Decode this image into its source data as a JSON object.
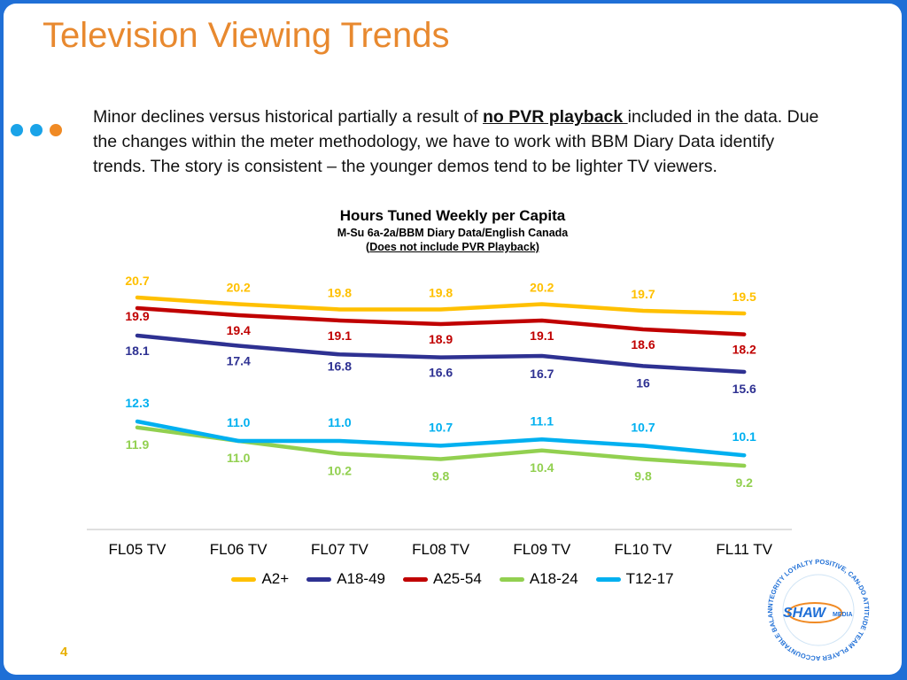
{
  "title": "Television Viewing Trends",
  "body": {
    "pre": "Minor declines versus historical partially a result of ",
    "emphasis": "no PVR playback ",
    "post": " included in the data. Due the changes within the meter methodology, we have to work with BBM Diary Data identify trends. The story is consistent – the younger demos tend to be lighter TV viewers."
  },
  "dots_colors": [
    "#1aa3e8",
    "#1aa3e8",
    "#f08a24"
  ],
  "chart_title": {
    "main": "Hours Tuned Weekly per Capita",
    "sub": "M-Su 6a-2a/BBM Diary Data/English Canada",
    "note_open": "(",
    "note": "Does not include PVR Playback)"
  },
  "page_number": "4",
  "logo": {
    "text": "SHAW",
    "media": "MEDIA",
    "ring": "INTEGRITY  LOYALTY  POSITIVE, CAN-DO ATTITUDE  TEAM PLAYER  ACCOUNTABLE  BALANCE  CUSTOMER FOCUSED"
  },
  "chart_data": {
    "type": "line",
    "categories": [
      "FL05 TV",
      "FL06 TV",
      "FL07 TV",
      "FL08 TV",
      "FL09 TV",
      "FL10 TV",
      "FL11 TV"
    ],
    "series": [
      {
        "name": "A2+",
        "color": "#ffc000",
        "values": [
          20.7,
          20.2,
          19.8,
          19.8,
          20.2,
          19.7,
          19.5
        ],
        "labels": [
          "20.7",
          "20.2",
          "19.8",
          "19.8",
          "20.2",
          "19.7",
          "19.5"
        ]
      },
      {
        "name": "A18-49",
        "color": "#2e3192",
        "values": [
          18.1,
          17.4,
          16.8,
          16.6,
          16.7,
          16.0,
          15.6
        ],
        "labels": [
          "18.1",
          "17.4",
          "16.8",
          "16.6",
          "16.7",
          "16",
          "15.6"
        ]
      },
      {
        "name": "A25-54",
        "color": "#c00000",
        "values": [
          19.9,
          19.4,
          19.1,
          18.9,
          19.1,
          18.6,
          18.2
        ],
        "labels": [
          "19.9",
          "19.4",
          "19.1",
          "18.9",
          "19.1",
          "18.6",
          "18.2"
        ]
      },
      {
        "name": "A18-24",
        "color": "#92d050",
        "values": [
          11.9,
          11.0,
          10.2,
          9.8,
          10.4,
          9.8,
          9.2
        ],
        "labels": [
          "11.9",
          "11.0",
          "10.2",
          "9.8",
          "10.4",
          "9.8",
          "9.2"
        ]
      },
      {
        "name": "T12-17",
        "color": "#00b0f0",
        "values": [
          12.3,
          11.0,
          11.0,
          10.7,
          11.1,
          10.7,
          10.1
        ],
        "labels": [
          "12.3",
          "11.0",
          "11.0",
          "10.7",
          "11.1",
          "10.7",
          "10.1"
        ]
      }
    ],
    "xlabel": "",
    "ylabel": "",
    "legend": "bottom",
    "grid": false
  }
}
